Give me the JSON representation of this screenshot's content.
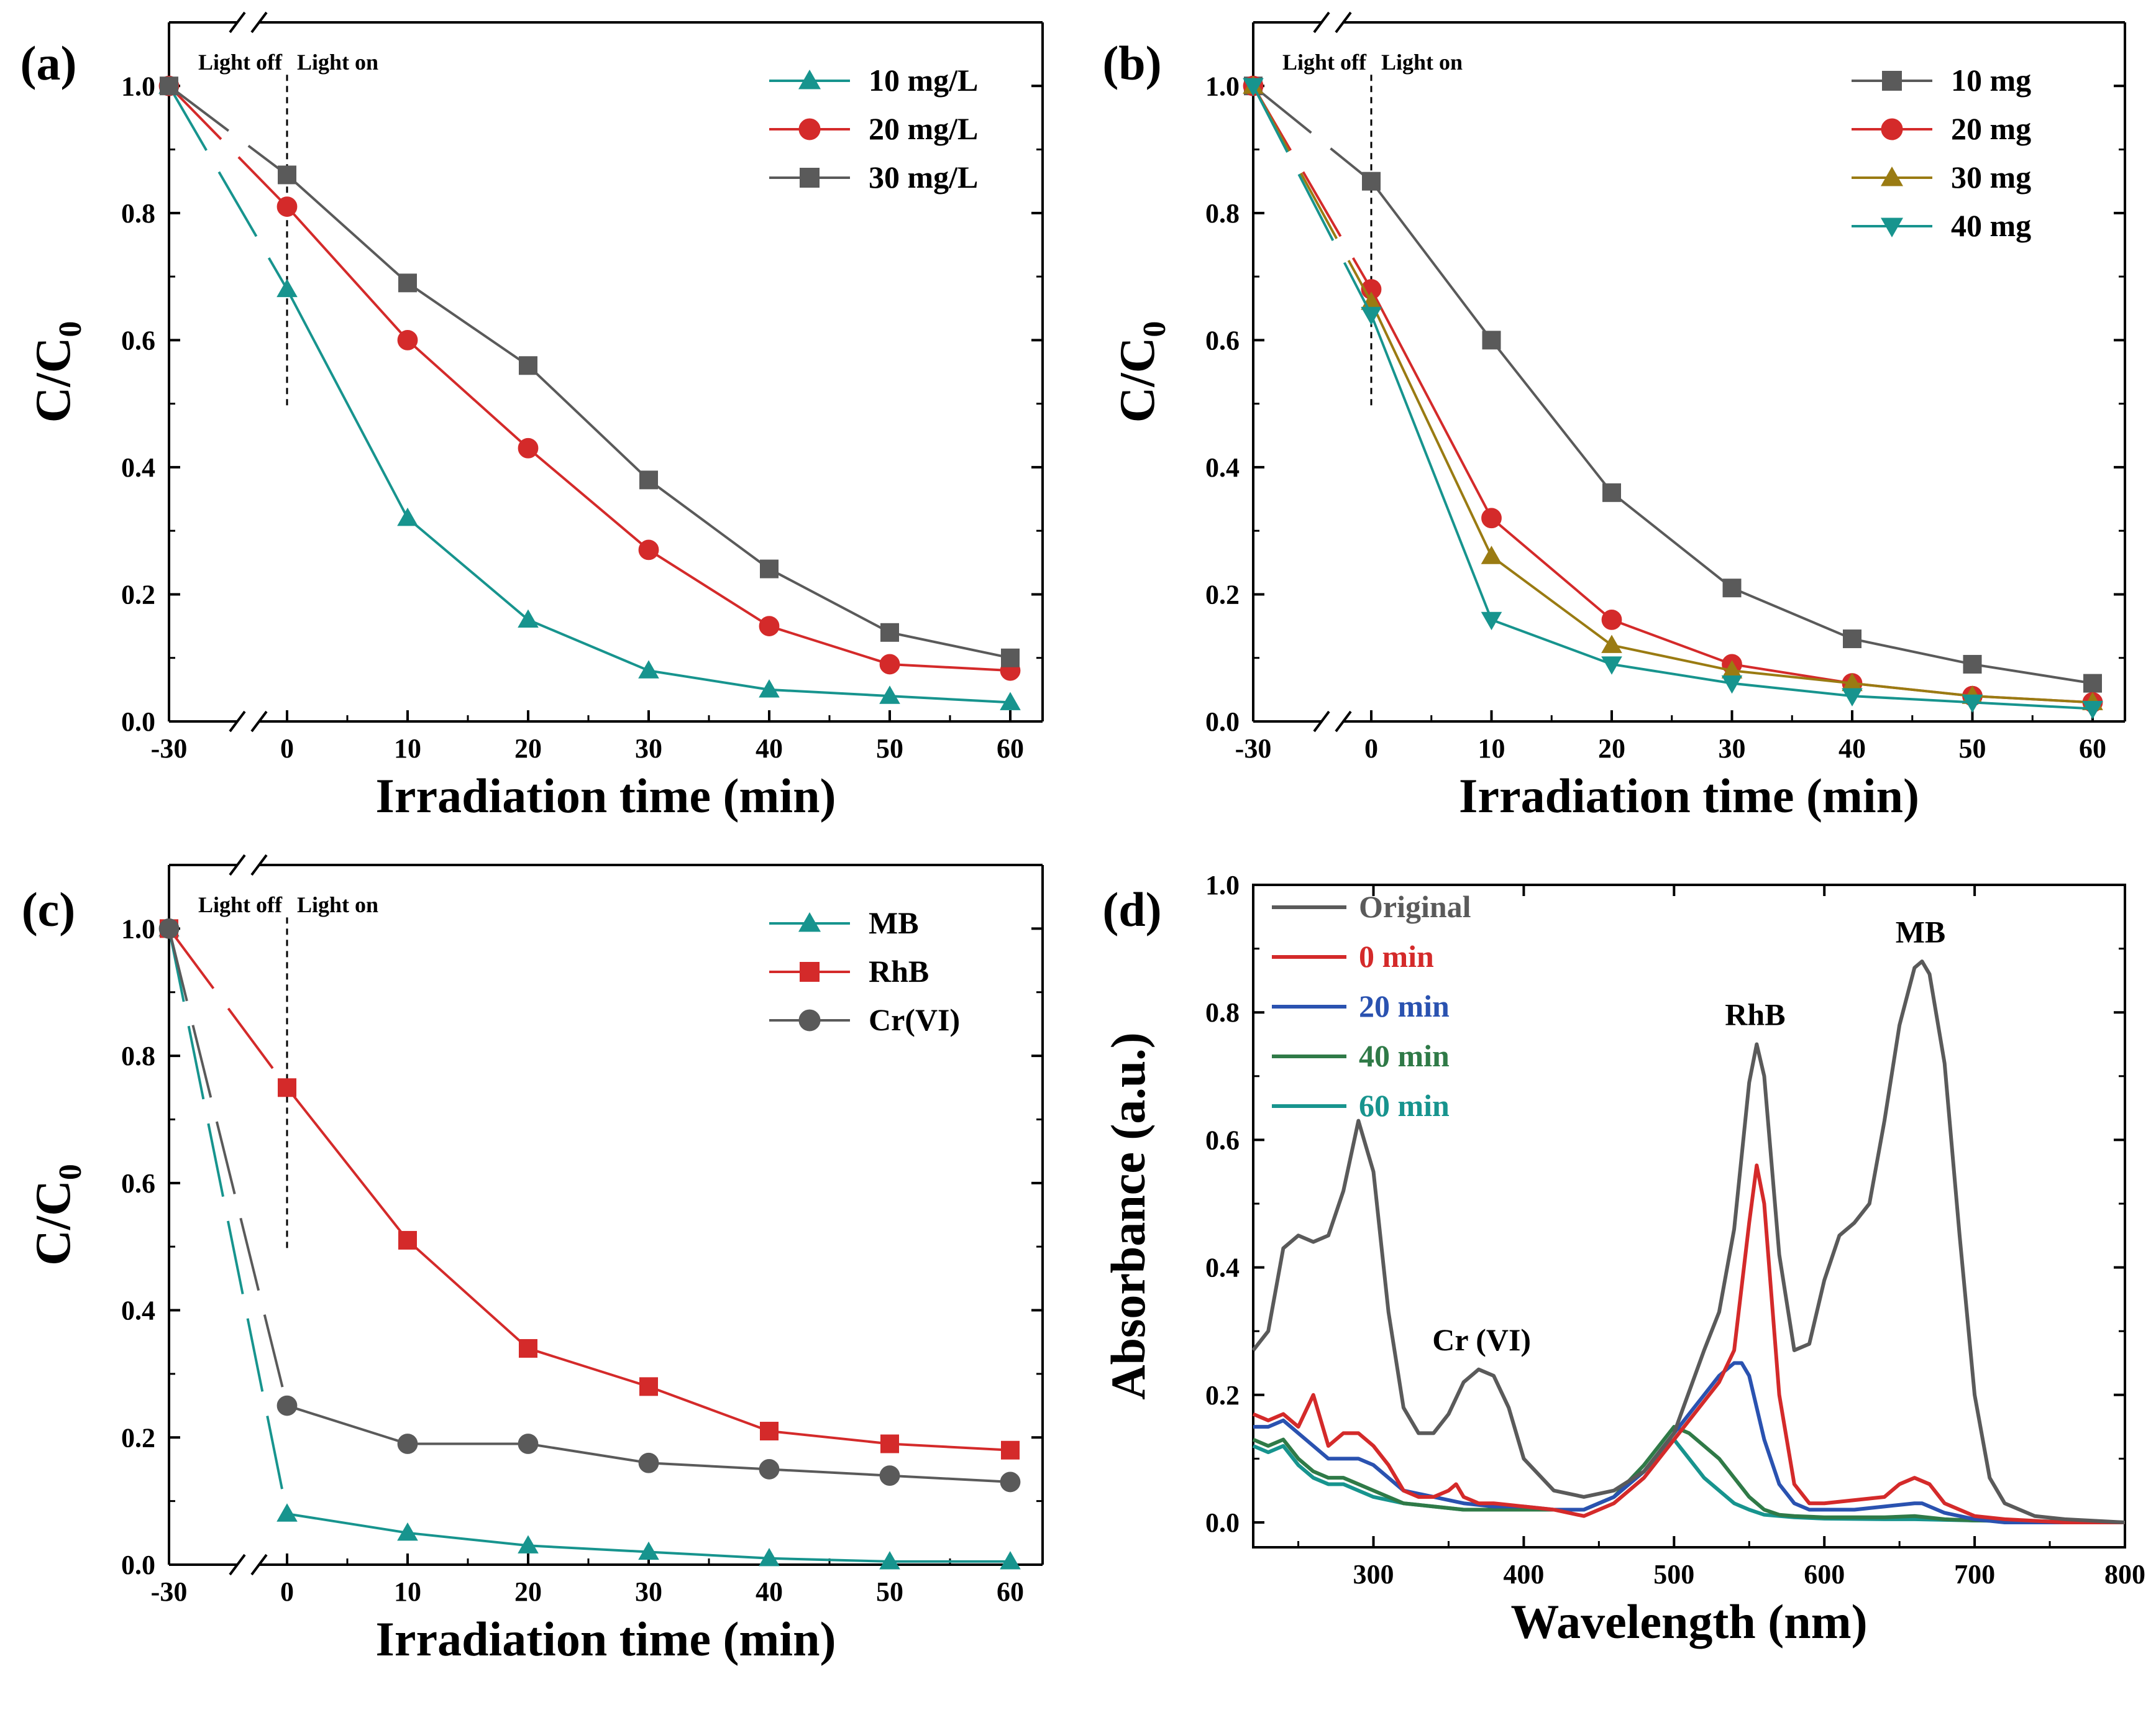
{
  "colors": {
    "teal": "#17948e",
    "red": "#d42a2a",
    "gray": "#5a5a5a",
    "olive": "#9a7b12",
    "blue": "#2a52b0",
    "green": "#2f7a47",
    "black": "#000000"
  },
  "chart_data": [
    {
      "panel": "(a)",
      "type": "line",
      "title": "",
      "xlabel": "Irradiation time (min)",
      "ylabel": "C/C",
      "ylabel_sub": "0",
      "x": [
        -30,
        0,
        10,
        20,
        30,
        40,
        50,
        60
      ],
      "x_ticks": [
        "-30",
        "0",
        "10",
        "20",
        "30",
        "40",
        "50",
        "60"
      ],
      "y_ticks": [
        "0.0",
        "0.2",
        "0.4",
        "0.6",
        "0.8",
        "1.0"
      ],
      "ylim": [
        0,
        1.1
      ],
      "annotation_light_off": "Light off",
      "annotation_light_on": "Light on",
      "legend": "top-right",
      "series": [
        {
          "name": "10 mg/L",
          "color": "teal",
          "marker": "triangle-up",
          "values": [
            1.0,
            0.68,
            0.32,
            0.16,
            0.08,
            0.05,
            0.04,
            0.03
          ]
        },
        {
          "name": "20 mg/L",
          "color": "red",
          "marker": "circle",
          "values": [
            1.0,
            0.81,
            0.6,
            0.43,
            0.27,
            0.15,
            0.09,
            0.08
          ]
        },
        {
          "name": "30 mg/L",
          "color": "gray",
          "marker": "square",
          "values": [
            1.0,
            0.86,
            0.69,
            0.56,
            0.38,
            0.24,
            0.14,
            0.1
          ]
        }
      ]
    },
    {
      "panel": "(b)",
      "type": "line",
      "title": "",
      "xlabel": "Irradiation time (min)",
      "ylabel": "C/C",
      "ylabel_sub": "0",
      "x": [
        -30,
        0,
        10,
        20,
        30,
        40,
        50,
        60
      ],
      "x_ticks": [
        "-30",
        "0",
        "10",
        "20",
        "30",
        "40",
        "50",
        "60"
      ],
      "y_ticks": [
        "0.0",
        "0.2",
        "0.4",
        "0.6",
        "0.8",
        "1.0"
      ],
      "ylim": [
        0,
        1.1
      ],
      "annotation_light_off": "Light off",
      "annotation_light_on": "Light on",
      "legend": "top-right",
      "series": [
        {
          "name": "10 mg",
          "color": "gray",
          "marker": "square",
          "values": [
            1.0,
            0.85,
            0.6,
            0.36,
            0.21,
            0.13,
            0.09,
            0.06
          ]
        },
        {
          "name": "20 mg",
          "color": "red",
          "marker": "circle",
          "values": [
            1.0,
            0.68,
            0.32,
            0.16,
            0.09,
            0.06,
            0.04,
            0.03
          ]
        },
        {
          "name": "30 mg",
          "color": "olive",
          "marker": "triangle-up",
          "values": [
            1.0,
            0.66,
            0.26,
            0.12,
            0.08,
            0.06,
            0.04,
            0.03
          ]
        },
        {
          "name": "40 mg",
          "color": "teal",
          "marker": "triangle-down",
          "values": [
            1.0,
            0.64,
            0.16,
            0.09,
            0.06,
            0.04,
            0.03,
            0.02
          ]
        }
      ]
    },
    {
      "panel": "(c)",
      "type": "line",
      "title": "",
      "xlabel": "Irradiation time (min)",
      "ylabel": "C/C",
      "ylabel_sub": "0",
      "x": [
        -30,
        0,
        10,
        20,
        30,
        40,
        50,
        60
      ],
      "x_ticks": [
        "-30",
        "0",
        "10",
        "20",
        "30",
        "40",
        "50",
        "60"
      ],
      "y_ticks": [
        "0.0",
        "0.2",
        "0.4",
        "0.6",
        "0.8",
        "1.0"
      ],
      "ylim": [
        0,
        1.1
      ],
      "annotation_light_off": "Light off",
      "annotation_light_on": "Light on",
      "legend": "top-right",
      "series": [
        {
          "name": "MB",
          "color": "teal",
          "marker": "triangle-up",
          "values": [
            1.0,
            0.08,
            0.05,
            0.03,
            0.02,
            0.01,
            0.005,
            0.005
          ]
        },
        {
          "name": "RhB",
          "color": "red",
          "marker": "square",
          "values": [
            1.0,
            0.75,
            0.51,
            0.34,
            0.28,
            0.21,
            0.19,
            0.18
          ]
        },
        {
          "name": "Cr(VI)",
          "color": "gray",
          "marker": "circle",
          "values": [
            1.0,
            0.25,
            0.19,
            0.19,
            0.16,
            0.15,
            0.14,
            0.13
          ]
        }
      ]
    },
    {
      "panel": "(d)",
      "type": "line",
      "title": "",
      "xlabel": "Wavelength (nm)",
      "ylabel": "Absorbance (a.u.)",
      "xlim": [
        220,
        800
      ],
      "ylim": [
        0,
        1.0
      ],
      "x_ticks": [
        "300",
        "400",
        "500",
        "600",
        "700",
        "800"
      ],
      "y_ticks": [
        "0.0",
        "0.2",
        "0.4",
        "0.6",
        "0.8",
        "1.0"
      ],
      "legend": "top-left",
      "peak_labels": [
        {
          "text": "Cr (VI)",
          "x": 372,
          "y": 0.27
        },
        {
          "text": "RhB",
          "x": 554,
          "y": 0.78
        },
        {
          "text": "MB",
          "x": 664,
          "y": 0.91
        }
      ],
      "series": [
        {
          "name": "Original",
          "color": "gray",
          "x": [
            220,
            230,
            240,
            250,
            260,
            270,
            280,
            290,
            300,
            310,
            320,
            330,
            340,
            350,
            360,
            370,
            380,
            390,
            400,
            420,
            440,
            460,
            480,
            500,
            520,
            530,
            540,
            550,
            555,
            560,
            570,
            580,
            590,
            600,
            610,
            620,
            630,
            640,
            650,
            660,
            665,
            670,
            680,
            690,
            700,
            710,
            720,
            740,
            760,
            800
          ],
          "y": [
            0.27,
            0.3,
            0.43,
            0.45,
            0.44,
            0.45,
            0.52,
            0.63,
            0.55,
            0.33,
            0.18,
            0.14,
            0.14,
            0.17,
            0.22,
            0.24,
            0.23,
            0.18,
            0.1,
            0.05,
            0.04,
            0.05,
            0.08,
            0.14,
            0.27,
            0.33,
            0.46,
            0.69,
            0.75,
            0.7,
            0.42,
            0.27,
            0.28,
            0.38,
            0.45,
            0.47,
            0.5,
            0.63,
            0.78,
            0.87,
            0.88,
            0.86,
            0.72,
            0.45,
            0.2,
            0.07,
            0.03,
            0.01,
            0.005,
            0.0
          ]
        },
        {
          "name": "0 min",
          "color": "red",
          "x": [
            220,
            230,
            240,
            250,
            260,
            270,
            280,
            290,
            300,
            310,
            320,
            330,
            340,
            350,
            355,
            360,
            370,
            380,
            400,
            420,
            440,
            460,
            480,
            500,
            520,
            530,
            540,
            550,
            555,
            560,
            570,
            580,
            590,
            600,
            620,
            640,
            650,
            660,
            665,
            670,
            680,
            700,
            720,
            760,
            800
          ],
          "y": [
            0.17,
            0.16,
            0.17,
            0.15,
            0.2,
            0.12,
            0.14,
            0.14,
            0.12,
            0.09,
            0.05,
            0.04,
            0.04,
            0.05,
            0.06,
            0.04,
            0.03,
            0.03,
            0.025,
            0.02,
            0.01,
            0.03,
            0.07,
            0.13,
            0.19,
            0.22,
            0.27,
            0.47,
            0.56,
            0.5,
            0.2,
            0.06,
            0.03,
            0.03,
            0.035,
            0.04,
            0.06,
            0.07,
            0.065,
            0.06,
            0.03,
            0.01,
            0.005,
            0.0,
            0.0
          ]
        },
        {
          "name": "20 min",
          "color": "blue",
          "x": [
            220,
            230,
            240,
            250,
            260,
            270,
            280,
            290,
            300,
            310,
            320,
            340,
            360,
            380,
            400,
            420,
            440,
            460,
            480,
            500,
            520,
            530,
            540,
            545,
            550,
            560,
            570,
            580,
            590,
            600,
            620,
            640,
            660,
            665,
            670,
            680,
            700,
            720,
            800
          ],
          "y": [
            0.15,
            0.15,
            0.16,
            0.14,
            0.12,
            0.1,
            0.1,
            0.1,
            0.09,
            0.07,
            0.05,
            0.04,
            0.03,
            0.025,
            0.025,
            0.02,
            0.02,
            0.04,
            0.08,
            0.14,
            0.2,
            0.23,
            0.25,
            0.25,
            0.23,
            0.13,
            0.06,
            0.03,
            0.02,
            0.02,
            0.02,
            0.025,
            0.03,
            0.03,
            0.025,
            0.015,
            0.005,
            0.0,
            0.0
          ]
        },
        {
          "name": "40 min",
          "color": "green",
          "x": [
            220,
            230,
            240,
            250,
            260,
            270,
            280,
            290,
            300,
            310,
            320,
            340,
            360,
            380,
            400,
            420,
            440,
            460,
            480,
            500,
            510,
            520,
            530,
            540,
            550,
            560,
            570,
            580,
            600,
            640,
            660,
            680,
            700,
            800
          ],
          "y": [
            0.13,
            0.12,
            0.13,
            0.1,
            0.08,
            0.07,
            0.07,
            0.06,
            0.05,
            0.04,
            0.03,
            0.025,
            0.02,
            0.02,
            0.02,
            0.02,
            0.02,
            0.04,
            0.09,
            0.15,
            0.14,
            0.12,
            0.1,
            0.07,
            0.04,
            0.02,
            0.012,
            0.01,
            0.008,
            0.008,
            0.01,
            0.005,
            0.003,
            0.0
          ]
        },
        {
          "name": "60 min",
          "color": "teal",
          "x": [
            220,
            230,
            240,
            250,
            260,
            270,
            280,
            290,
            300,
            310,
            320,
            340,
            360,
            380,
            400,
            420,
            440,
            460,
            480,
            495,
            500,
            510,
            520,
            530,
            540,
            550,
            560,
            580,
            600,
            640,
            660,
            700,
            800
          ],
          "y": [
            0.12,
            0.11,
            0.12,
            0.09,
            0.07,
            0.06,
            0.06,
            0.05,
            0.04,
            0.035,
            0.03,
            0.025,
            0.02,
            0.02,
            0.02,
            0.02,
            0.02,
            0.04,
            0.08,
            0.12,
            0.13,
            0.1,
            0.07,
            0.05,
            0.03,
            0.02,
            0.012,
            0.008,
            0.006,
            0.005,
            0.005,
            0.003,
            0.0
          ]
        }
      ]
    }
  ]
}
